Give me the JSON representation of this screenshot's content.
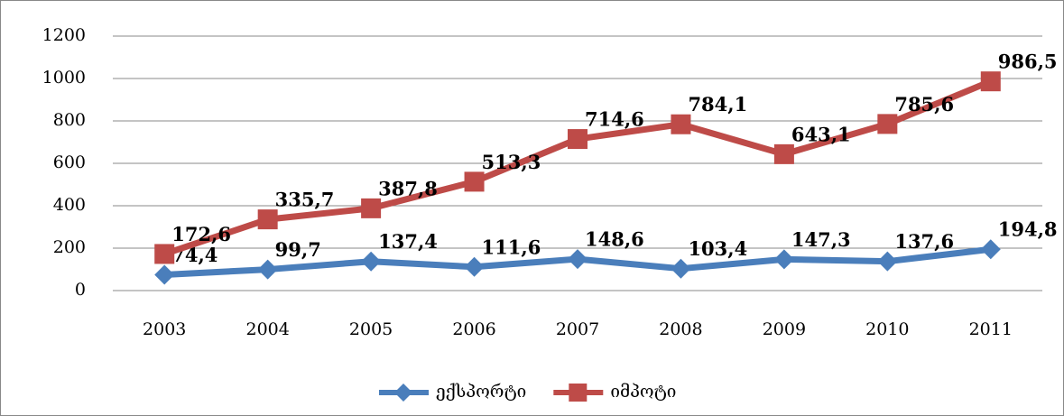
{
  "chart_data": {
    "type": "line",
    "categories": [
      "2003",
      "2004",
      "2005",
      "2006",
      "2007",
      "2008",
      "2009",
      "2010",
      "2011"
    ],
    "series": [
      {
        "name": "ექსპორტი",
        "color": "#4a7ebb",
        "marker": "diamond",
        "values": [
          74.4,
          99.7,
          137.4,
          111.6,
          148.6,
          103.4,
          147.3,
          137.6,
          194.8
        ],
        "value_labels": [
          "74,4",
          "99,7",
          "137,4",
          "111,6",
          "148,6",
          "103,4",
          "147,3",
          "137,6",
          "194,8"
        ]
      },
      {
        "name": "იმპოტი",
        "color": "#be4b48",
        "marker": "square",
        "values": [
          172.6,
          335.7,
          387.8,
          513.3,
          714.6,
          784.1,
          643.1,
          785.6,
          986.5
        ],
        "value_labels": [
          "172,6",
          "335,7",
          "387,8",
          "513,3",
          "714,6",
          "784,1",
          "643,1",
          "785,6",
          "986,5"
        ]
      }
    ],
    "ylim": [
      0,
      1200
    ],
    "yticks": [
      0,
      200,
      400,
      600,
      800,
      1000,
      1200
    ],
    "grid": true,
    "legend": "bottom"
  }
}
